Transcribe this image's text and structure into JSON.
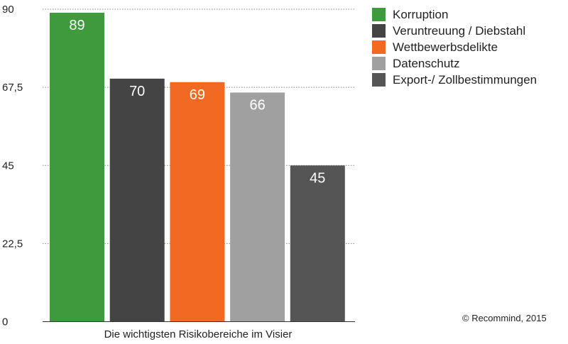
{
  "chart_data": {
    "type": "bar",
    "title": "",
    "xlabel": "Die wichtigsten Risikobereiche im Visier",
    "ylabel": "",
    "ylim": [
      0,
      90
    ],
    "yticks": [
      "0",
      "22,5",
      "45",
      "67,5",
      "90"
    ],
    "ytick_values": [
      0,
      22.5,
      45,
      67.5,
      90
    ],
    "grid": true,
    "legend_position": "right",
    "categories": [
      "Korruption",
      "Veruntreuung / Diebstahl",
      "Wettbewerbsdelikte",
      "Datenschutz",
      "Export-/ Zollbestimmungen"
    ],
    "values": [
      89,
      70,
      69,
      66,
      45
    ],
    "data_labels": [
      "89",
      "70",
      "69",
      "66",
      "45"
    ],
    "colors": [
      "#3f9a3c",
      "#444444",
      "#f26a22",
      "#a0a0a0",
      "#555555"
    ]
  },
  "legend": {
    "items": [
      {
        "label": "Korruption",
        "color": "#3f9a3c"
      },
      {
        "label": "Veruntreuung / Diebstahl",
        "color": "#444444"
      },
      {
        "label": "Wettbewerbsdelikte",
        "color": "#f26a22"
      },
      {
        "label": "Datenschutz",
        "color": "#a0a0a0"
      },
      {
        "label": "Export-/ Zollbestimmungen",
        "color": "#555555"
      }
    ]
  },
  "copyright": "© Recommind, 2015"
}
